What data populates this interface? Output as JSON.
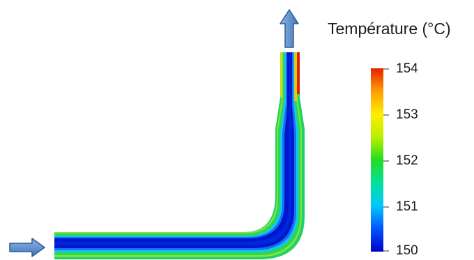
{
  "legend": {
    "title": "Température (°C)",
    "min": 150,
    "max": 154,
    "ticks": [
      "154",
      "153",
      "152",
      "151",
      "150"
    ]
  },
  "colormap": [
    "#0000c8",
    "#0050ff",
    "#00c8ff",
    "#00e0a0",
    "#22dd22",
    "#b8ee00",
    "#ffee00",
    "#ff9900",
    "#e82000"
  ],
  "colors": {
    "arrow_fill": "#5b8fd0",
    "arrow_stroke": "#2e5c96",
    "core": "#0018cc",
    "wall": "#e02000"
  },
  "icons": {
    "inlet": "right-arrow-icon",
    "outlet": "up-arrow-icon"
  }
}
